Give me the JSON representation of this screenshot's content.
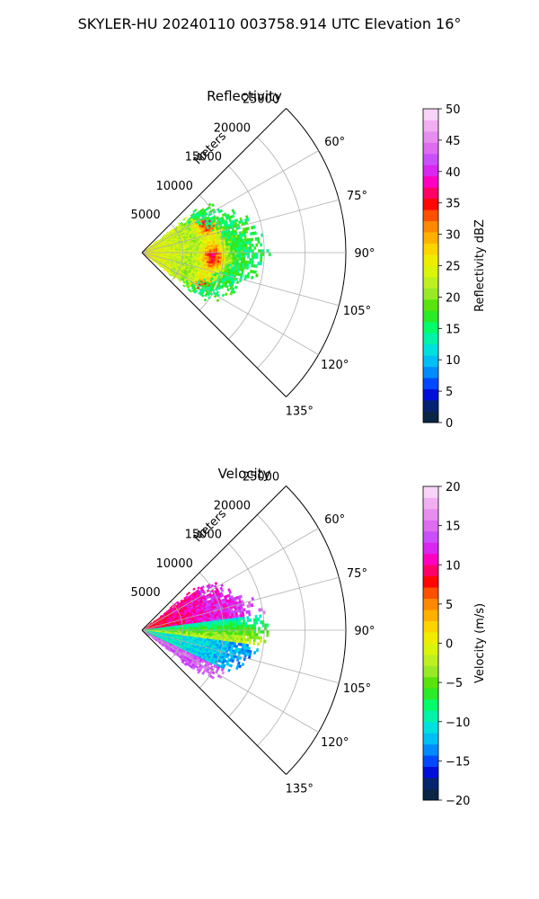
{
  "suptitle": "SKYLER-HU  20240110  003758.914 UTC Elevation 16°",
  "chart_data": [
    {
      "type": "heatmap",
      "projection": "polar-sector",
      "title": "Reflectivity",
      "range_label": "Meters",
      "azimuth_range_deg": [
        45,
        135
      ],
      "range_max_m": 25000,
      "range_ticks": [
        5000,
        10000,
        15000,
        20000,
        25000
      ],
      "range_tick_labels": [
        "5000",
        "10000",
        "15000",
        "20000",
        "25000"
      ],
      "azimuth_ticks": [
        60,
        75,
        90,
        105,
        120,
        135
      ],
      "azimuth_tick_labels": [
        "60°",
        "75°",
        "90°",
        "105°",
        "120°",
        "135°"
      ],
      "grid": true,
      "colorbar": {
        "label": "Reflectivity dBZ",
        "min": 0,
        "max": 50,
        "ticks": [
          0,
          5,
          10,
          15,
          20,
          25,
          30,
          35,
          40,
          45,
          50
        ],
        "tick_labels": [
          "0",
          "5",
          "10",
          "15",
          "20",
          "25",
          "30",
          "35",
          "40",
          "45",
          "50"
        ],
        "colormap": "HomeyerRainbow",
        "stops": [
          {
            "v": 0,
            "c": "#0b0b5e"
          },
          {
            "v": 1.7,
            "c": "#0a3d2e"
          },
          {
            "v": 4,
            "c": "#0000cc"
          },
          {
            "v": 6,
            "c": "#0040ff"
          },
          {
            "v": 9,
            "c": "#00b0ff"
          },
          {
            "v": 12,
            "c": "#00e8d8"
          },
          {
            "v": 15,
            "c": "#00ff70"
          },
          {
            "v": 18,
            "c": "#40e000"
          },
          {
            "v": 21,
            "c": "#a8ec30"
          },
          {
            "v": 25,
            "c": "#e8f800"
          },
          {
            "v": 28,
            "c": "#ffd000"
          },
          {
            "v": 31,
            "c": "#ff9000"
          },
          {
            "v": 33,
            "c": "#ff5000"
          },
          {
            "v": 35,
            "c": "#ff0000"
          },
          {
            "v": 37,
            "c": "#ff0080"
          },
          {
            "v": 39,
            "c": "#ff00dc"
          },
          {
            "v": 41,
            "c": "#c040ff"
          },
          {
            "v": 44,
            "c": "#e070f0"
          },
          {
            "v": 47,
            "c": "#f0a8f0"
          },
          {
            "v": 50,
            "c": "#fbe6fb"
          }
        ]
      }
    },
    {
      "type": "heatmap",
      "projection": "polar-sector",
      "title": "Velocity",
      "range_label": "Meters",
      "azimuth_range_deg": [
        45,
        135
      ],
      "range_max_m": 25000,
      "range_ticks": [
        5000,
        10000,
        15000,
        20000,
        25000
      ],
      "range_tick_labels": [
        "5000",
        "10000",
        "15000",
        "20000",
        "25000"
      ],
      "azimuth_ticks": [
        60,
        75,
        90,
        105,
        120,
        135
      ],
      "azimuth_tick_labels": [
        "60°",
        "75°",
        "90°",
        "105°",
        "120°",
        "135°"
      ],
      "grid": true,
      "colorbar": {
        "label": "Velocity (m/s)",
        "min": -20,
        "max": 20,
        "ticks": [
          -20,
          -15,
          -10,
          -5,
          0,
          5,
          10,
          15,
          20
        ],
        "tick_labels": [
          "−20",
          "−15",
          "−10",
          "−5",
          "0",
          "5",
          "10",
          "15",
          "20"
        ],
        "colormap": "HomeyerRainbow",
        "stops": [
          {
            "v": -20,
            "c": "#0b0b5e"
          },
          {
            "v": -18.6,
            "c": "#0a3d2e"
          },
          {
            "v": -16.8,
            "c": "#0000cc"
          },
          {
            "v": -15.2,
            "c": "#0040ff"
          },
          {
            "v": -12.8,
            "c": "#00b0ff"
          },
          {
            "v": -10.4,
            "c": "#00e8d8"
          },
          {
            "v": -8,
            "c": "#00ff70"
          },
          {
            "v": -5.6,
            "c": "#40e000"
          },
          {
            "v": -3.2,
            "c": "#a8ec30"
          },
          {
            "v": 0,
            "c": "#e8f800"
          },
          {
            "v": 2.4,
            "c": "#ffd000"
          },
          {
            "v": 4.8,
            "c": "#ff9000"
          },
          {
            "v": 6.4,
            "c": "#ff5000"
          },
          {
            "v": 8,
            "c": "#ff0000"
          },
          {
            "v": 9.6,
            "c": "#ff0080"
          },
          {
            "v": 11.2,
            "c": "#ff00dc"
          },
          {
            "v": 12.8,
            "c": "#c040ff"
          },
          {
            "v": 15.2,
            "c": "#e070f0"
          },
          {
            "v": 17.6,
            "c": "#f0a8f0"
          },
          {
            "v": 20,
            "c": "#fbe6fb"
          }
        ]
      }
    }
  ]
}
